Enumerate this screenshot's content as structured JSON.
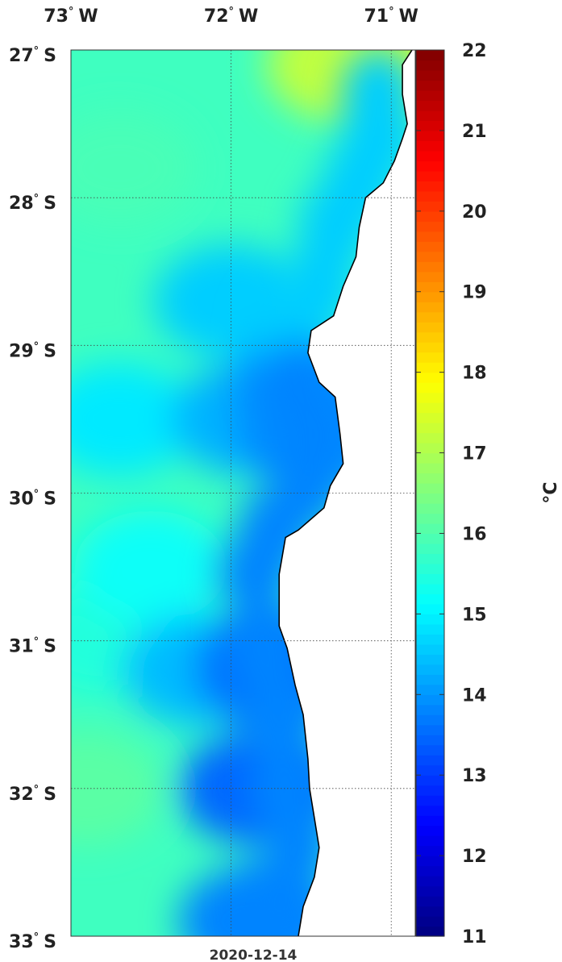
{
  "map": {
    "lon_ticks": [
      {
        "value": -73,
        "label": "73",
        "hemi": "W"
      },
      {
        "value": -72,
        "label": "72",
        "hemi": "W"
      },
      {
        "value": -71,
        "label": "71",
        "hemi": "W"
      }
    ],
    "lat_ticks": [
      {
        "value": -27,
        "label": "27",
        "hemi": "S"
      },
      {
        "value": -28,
        "label": "28",
        "hemi": "S"
      },
      {
        "value": -29,
        "label": "29",
        "hemi": "S"
      },
      {
        "value": -30,
        "label": "30",
        "hemi": "S"
      },
      {
        "value": -31,
        "label": "31",
        "hemi": "S"
      },
      {
        "value": -32,
        "label": "32",
        "hemi": "S"
      },
      {
        "value": -33,
        "label": "33",
        "hemi": "S"
      }
    ],
    "lon_range": [
      -73,
      -70.85
    ],
    "lat_range": [
      -33,
      -27
    ],
    "grid": true,
    "date": "2020-12-14",
    "land_color": "#ffffff",
    "coast_color": "#000000",
    "coastline": [
      [
        -70.87,
        -27.0
      ],
      [
        -70.93,
        -27.1
      ],
      [
        -70.93,
        -27.3
      ],
      [
        -70.9,
        -27.5
      ],
      [
        -70.93,
        -27.6
      ],
      [
        -70.98,
        -27.75
      ],
      [
        -71.05,
        -27.9
      ],
      [
        -71.16,
        -28.0
      ],
      [
        -71.2,
        -28.2
      ],
      [
        -71.22,
        -28.4
      ],
      [
        -71.3,
        -28.6
      ],
      [
        -71.36,
        -28.8
      ],
      [
        -71.5,
        -28.9
      ],
      [
        -71.52,
        -29.05
      ],
      [
        -71.45,
        -29.25
      ],
      [
        -71.35,
        -29.35
      ],
      [
        -71.32,
        -29.6
      ],
      [
        -71.3,
        -29.8
      ],
      [
        -71.38,
        -29.95
      ],
      [
        -71.42,
        -30.1
      ],
      [
        -71.58,
        -30.25
      ],
      [
        -71.66,
        -30.3
      ],
      [
        -71.7,
        -30.55
      ],
      [
        -71.7,
        -30.9
      ],
      [
        -71.65,
        -31.05
      ],
      [
        -71.6,
        -31.3
      ],
      [
        -71.55,
        -31.5
      ],
      [
        -71.52,
        -31.8
      ],
      [
        -71.51,
        -32.0
      ],
      [
        -71.48,
        -32.2
      ],
      [
        -71.45,
        -32.4
      ],
      [
        -71.48,
        -32.6
      ],
      [
        -71.55,
        -32.8
      ],
      [
        -71.58,
        -33.0
      ]
    ],
    "sst_field": {
      "units": "°C",
      "features": [
        {
          "lon": -71.5,
          "lat": -29.6,
          "value": 13.9
        },
        {
          "lon": -71.75,
          "lat": -31.2,
          "value": 13.6
        },
        {
          "lon": -71.85,
          "lat": -32.0,
          "value": 13.5
        },
        {
          "lon": -71.85,
          "lat": -32.9,
          "value": 13.8
        },
        {
          "lon": -71.55,
          "lat": -29.3,
          "value": 14.0
        },
        {
          "lon": -71.9,
          "lat": -29.5,
          "value": 14.3
        },
        {
          "lon": -72.2,
          "lat": -31.2,
          "value": 14.4
        },
        {
          "lon": -72.0,
          "lat": -28.7,
          "value": 14.6
        },
        {
          "lon": -72.7,
          "lat": -29.5,
          "value": 14.9
        },
        {
          "lon": -72.5,
          "lat": -30.5,
          "value": 15.2
        },
        {
          "lon": -72.8,
          "lat": -31.0,
          "value": 15.5
        },
        {
          "lon": -72.7,
          "lat": -27.8,
          "value": 15.9
        },
        {
          "lon": -72.9,
          "lat": -32.0,
          "value": 16.1
        },
        {
          "lon": -71.3,
          "lat": -27.1,
          "value": 17.2
        },
        {
          "lon": -71.0,
          "lat": -27.05,
          "value": 17.6
        }
      ]
    }
  },
  "colorbar": {
    "range": [
      11,
      22
    ],
    "ticks": [
      "22",
      "21",
      "20",
      "19",
      "18",
      "17",
      "16",
      "15",
      "14",
      "13",
      "12",
      "11"
    ],
    "label": "°C",
    "colormap": "jet"
  }
}
